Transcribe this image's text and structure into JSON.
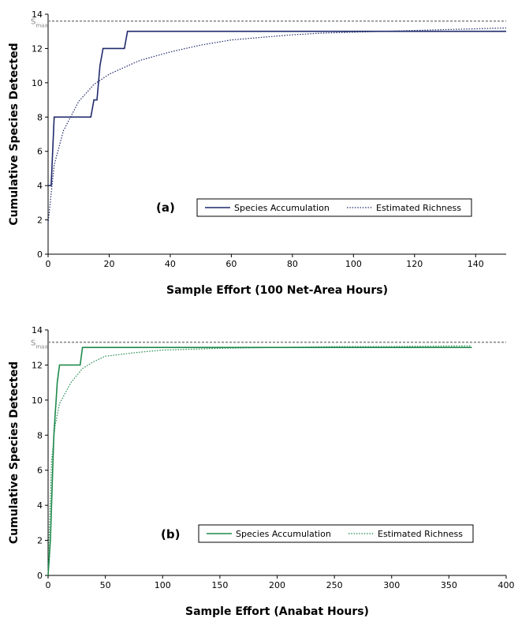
{
  "chart_data": [
    {
      "type": "line",
      "panel_label": "(a)",
      "xlabel": "Sample Effort (100 Net-Area Hours)",
      "ylabel": "Cumulative Species Detected",
      "xlim": [
        0,
        150
      ],
      "ylim": [
        0,
        14
      ],
      "xticks": [
        0,
        20,
        40,
        60,
        80,
        100,
        120,
        140
      ],
      "yticks": [
        0,
        2,
        4,
        6,
        8,
        10,
        12,
        14
      ],
      "smax": 13.6,
      "smax_label": "S",
      "smax_sub": "max",
      "color": "#1f2a6b",
      "series": [
        {
          "name": "Species Accumulation",
          "style": "solid",
          "x": [
            0,
            1,
            2,
            14,
            15,
            16,
            17,
            18,
            25,
            26,
            150
          ],
          "y": [
            4,
            4,
            8,
            8,
            9,
            9,
            11,
            12,
            12,
            13,
            13
          ]
        },
        {
          "name": "Estimated Richness",
          "style": "dotted",
          "x": [
            0,
            2,
            5,
            10,
            15,
            20,
            25,
            30,
            40,
            50,
            60,
            70,
            80,
            90,
            100,
            110,
            120,
            130,
            140,
            150
          ],
          "y": [
            1.8,
            5.2,
            7.2,
            8.9,
            9.9,
            10.5,
            10.9,
            11.3,
            11.8,
            12.2,
            12.5,
            12.65,
            12.8,
            12.9,
            12.95,
            13.0,
            13.05,
            13.1,
            13.15,
            13.2
          ]
        }
      ]
    },
    {
      "type": "line",
      "panel_label": "(b)",
      "xlabel": "Sample Effort (Anabat Hours)",
      "ylabel": "Cumulative Species Detected",
      "xlim": [
        0,
        400
      ],
      "ylim": [
        0,
        14
      ],
      "xticks": [
        0,
        50,
        100,
        150,
        200,
        250,
        300,
        350,
        400
      ],
      "yticks": [
        0,
        2,
        4,
        6,
        8,
        10,
        12,
        14
      ],
      "smax": 13.3,
      "smax_label": "S",
      "smax_sub": "max",
      "color": "#1f8a4c",
      "series": [
        {
          "name": "Species Accumulation",
          "style": "solid",
          "x": [
            0,
            2,
            3,
            4,
            5,
            6,
            7,
            8,
            10,
            28,
            30,
            370
          ],
          "y": [
            0,
            2,
            4,
            6,
            8,
            9,
            10,
            11,
            12,
            12,
            13,
            13
          ]
        },
        {
          "name": "Estimated Richness",
          "style": "dotted",
          "x": [
            0,
            3,
            6,
            10,
            20,
            30,
            40,
            50,
            75,
            100,
            150,
            200,
            250,
            300,
            370
          ],
          "y": [
            0.5,
            6.5,
            8.5,
            9.8,
            11.0,
            11.8,
            12.2,
            12.5,
            12.7,
            12.85,
            12.95,
            13.0,
            13.05,
            13.05,
            13.1
          ]
        }
      ]
    }
  ]
}
